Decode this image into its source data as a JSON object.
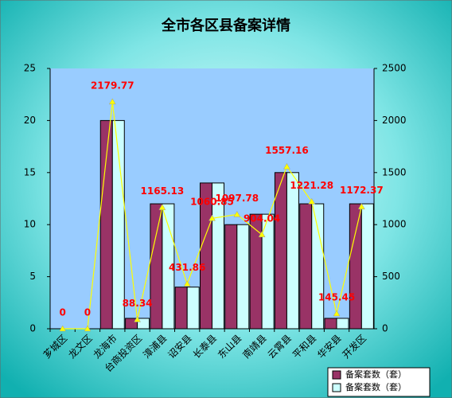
{
  "chart_data": {
    "type": "bar-line",
    "title": "全市各区县备案详情",
    "categories": [
      "芗城区",
      "龙文区",
      "龙海市",
      "台商投资区",
      "漳浦县",
      "诏安县",
      "长泰县",
      "东山县",
      "南靖县",
      "云霄县",
      "平和县",
      "华安县",
      "开发区"
    ],
    "series": [
      {
        "name": "备案套数（套）",
        "type": "bar",
        "color": "#993366",
        "values": [
          0,
          0,
          20,
          1,
          12,
          4,
          14,
          10,
          11,
          15,
          12,
          1,
          12
        ]
      },
      {
        "name": "备案套数（套）",
        "type": "bar",
        "color": "#ccffff",
        "values": [
          0,
          0,
          20,
          1,
          12,
          4,
          14,
          10,
          11,
          15,
          12,
          1,
          12
        ]
      },
      {
        "type": "line",
        "axis": "y2",
        "color": "#ffff00",
        "values": [
          0,
          0,
          2179.77,
          88.34,
          1165.13,
          431.86,
          1060.85,
          1097.78,
          904.04,
          1557.16,
          1221.28,
          145.45,
          1172.37
        ]
      }
    ],
    "ylim": [
      0,
      25
    ],
    "yticks": [
      0,
      5,
      10,
      15,
      20,
      25
    ],
    "y2lim": [
      0,
      2500
    ],
    "y2ticks": [
      0,
      500,
      1000,
      1500,
      2000,
      2500
    ],
    "legend": "bottom-right"
  }
}
